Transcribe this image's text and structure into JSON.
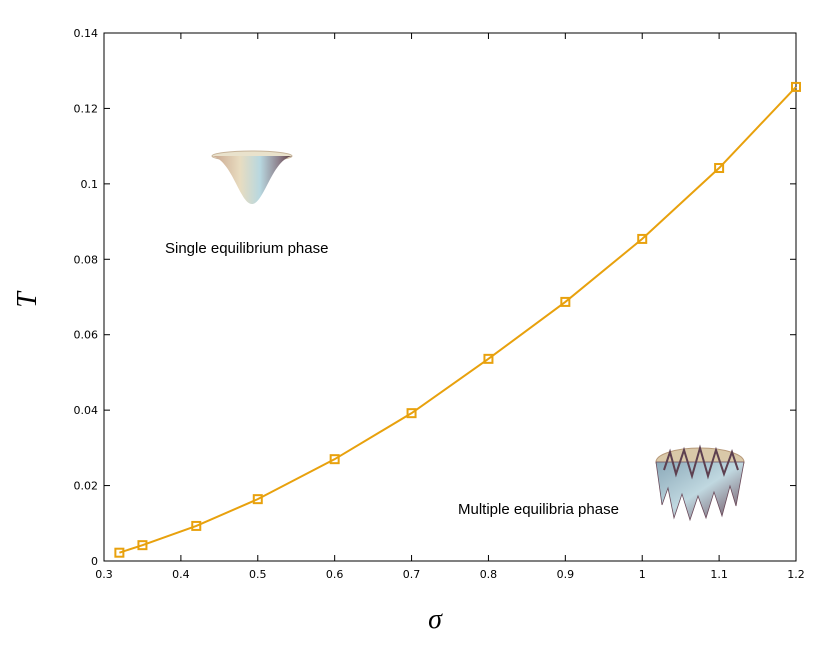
{
  "chart_data": {
    "type": "line",
    "x_label": "σ",
    "y_label": "T",
    "annotations": [
      "Single equilibrium phase",
      "Multiple equilibria phase"
    ],
    "x": [
      0.32,
      0.35,
      0.42,
      0.5,
      0.6,
      0.7,
      0.8,
      0.9,
      1.0,
      1.1,
      1.2
    ],
    "series": [
      {
        "name": "T",
        "color": "#e8a10d",
        "values": [
          0.0022,
          0.0042,
          0.0093,
          0.0164,
          0.027,
          0.0392,
          0.0536,
          0.0687,
          0.0854,
          0.1042,
          0.1257
        ]
      }
    ],
    "xlim": [
      0.3,
      1.2
    ],
    "ylim": [
      0,
      0.14
    ],
    "xticks": [
      0.3,
      0.4,
      0.5,
      0.6,
      0.7,
      0.8,
      0.9,
      1,
      1.1,
      1.2
    ],
    "yticks": [
      0,
      0.02,
      0.04,
      0.06,
      0.08,
      0.1,
      0.12,
      0.14
    ],
    "grid": false
  }
}
